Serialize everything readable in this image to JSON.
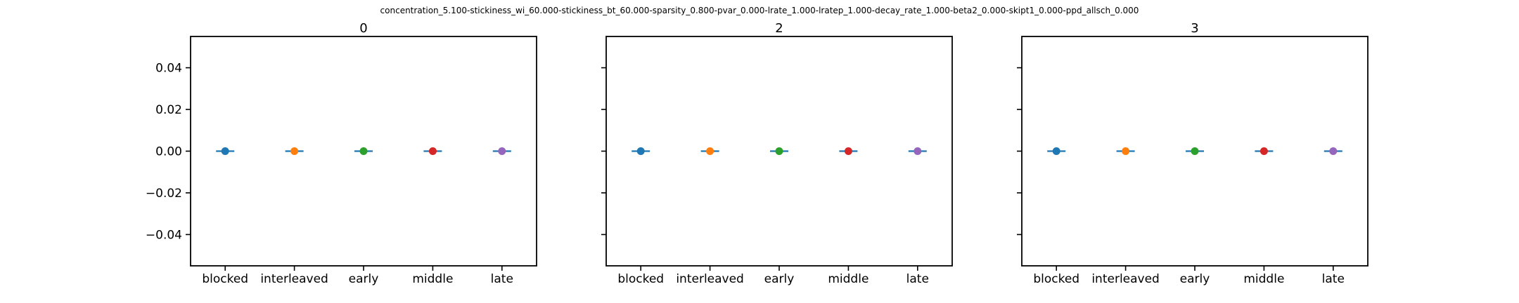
{
  "suptitle": "concentration_5.100-stickiness_wi_60.000-stickiness_bt_60.000-sparsity_0.800-pvar_0.000-lrate_1.000-lratep_1.000-decay_rate_1.000-beta2_0.000-skipt1_0.000-ppd_allsch_0.000",
  "series_colors": [
    "#1f77b4",
    "#ff7f0e",
    "#2ca02c",
    "#d62728",
    "#9467bd"
  ],
  "chart_data": [
    {
      "type": "scatter",
      "title": "0",
      "categories": [
        "blocked",
        "interleaved",
        "early",
        "middle",
        "late"
      ],
      "values": [
        0.0,
        0.0,
        0.0,
        0.0,
        0.0
      ],
      "errors": [
        0.0,
        0.0,
        0.0,
        0.0,
        0.0
      ],
      "ylim": [
        -0.055,
        0.055
      ],
      "yticks": [
        0.04,
        0.02,
        0.0,
        -0.02,
        -0.04
      ],
      "ytick_labels": [
        "0.04",
        "0.02",
        "0.00",
        "−0.02",
        "−0.04"
      ],
      "grid": false
    },
    {
      "type": "scatter",
      "title": "2",
      "categories": [
        "blocked",
        "interleaved",
        "early",
        "middle",
        "late"
      ],
      "values": [
        0.0,
        0.0,
        0.0,
        0.0,
        0.0
      ],
      "errors": [
        0.0,
        0.0,
        0.0,
        0.0,
        0.0
      ],
      "ylim": [
        -0.055,
        0.055
      ],
      "yticks": [
        0.04,
        0.02,
        0.0,
        -0.02,
        -0.04
      ],
      "ytick_labels": [],
      "grid": false
    },
    {
      "type": "scatter",
      "title": "3",
      "categories": [
        "blocked",
        "interleaved",
        "early",
        "middle",
        "late"
      ],
      "values": [
        0.0,
        0.0,
        0.0,
        0.0,
        0.0
      ],
      "errors": [
        0.0,
        0.0,
        0.0,
        0.0,
        0.0
      ],
      "ylim": [
        -0.055,
        0.055
      ],
      "yticks": [
        0.04,
        0.02,
        0.0,
        -0.02,
        -0.04
      ],
      "ytick_labels": [],
      "grid": false
    }
  ]
}
